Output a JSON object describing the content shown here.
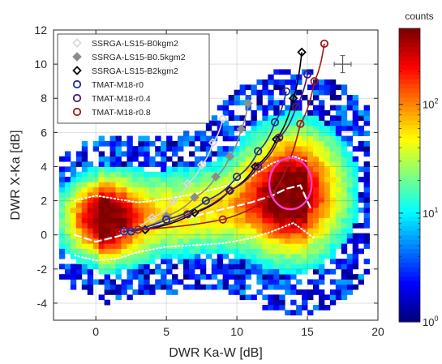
{
  "chart_data": {
    "type": "scatter",
    "subtype": "2d-histogram-with-model-curves",
    "xlabel": "DWR Ka-W [dB]",
    "ylabel": "DWR X-Ka [dB]",
    "xlim": [
      -3,
      20
    ],
    "ylim": [
      -5,
      12
    ],
    "xticks": [
      "0",
      "5",
      "10",
      "15",
      "20"
    ],
    "yticks": [
      "-4",
      "-2",
      "0",
      "2",
      "4",
      "6",
      "8",
      "10",
      "12"
    ],
    "grid": true,
    "legend_position": "top-left",
    "colorbar": {
      "label": "counts",
      "scale": "log",
      "range": [
        1,
        500
      ],
      "ticks": [
        {
          "base": "10",
          "exp": "0",
          "value": 1
        },
        {
          "base": "10",
          "exp": "1",
          "value": 10
        },
        {
          "base": "10",
          "exp": "2",
          "value": 100
        }
      ],
      "colormap": "jet"
    },
    "density_model": {
      "peaks": [
        {
          "x": 0.5,
          "y": 1.0,
          "sx": 1.5,
          "sy": 1.25,
          "weight": 1.0
        },
        {
          "x": 14.0,
          "y": 2.5,
          "sx": 2.0,
          "sy": 2.0,
          "weight": 0.95
        }
      ],
      "ridge": {
        "x_from": 0,
        "x_to": 15,
        "y_center_from": 0.7,
        "y_center_to": 2.2,
        "sy": 1.4,
        "weight": 0.35
      }
    },
    "series": [
      {
        "name": "SSRGA-LS15-B0kgm2",
        "kind": "model",
        "color": "#d9d9d9",
        "marker": "diamond-open",
        "x": [
          2.0,
          4.0,
          5.5,
          6.5,
          7.5,
          8.3,
          9.0
        ],
        "y": [
          0.2,
          1.0,
          2.0,
          3.0,
          4.1,
          5.4,
          6.8
        ]
      },
      {
        "name": "SSRGA-LS15-B0.5kgm2",
        "kind": "model",
        "color": "#8c8c8c",
        "marker": "diamond-filled",
        "x": [
          2.5,
          5.0,
          7.0,
          8.5,
          9.5,
          10.3,
          10.8
        ],
        "y": [
          0.2,
          1.1,
          2.2,
          3.4,
          4.6,
          6.2,
          7.7
        ]
      },
      {
        "name": "SSRGA-LS15-B2kgm2",
        "kind": "model",
        "color": "#000000",
        "marker": "diamond-open",
        "x": [
          3.5,
          7.0,
          9.5,
          11.3,
          12.8,
          14.0,
          14.6
        ],
        "y": [
          0.3,
          1.3,
          2.6,
          4.0,
          5.6,
          8.0,
          10.7
        ]
      },
      {
        "name": "TMAT-M18-r0",
        "kind": "model",
        "color": "#1f2f8f",
        "marker": "circle-open",
        "x": [
          2.0,
          5.0,
          7.8,
          10.0,
          11.5,
          12.7,
          13.5
        ],
        "y": [
          0.2,
          0.9,
          2.0,
          3.4,
          4.9,
          6.6,
          8.4
        ]
      },
      {
        "name": "TMAT-M18-r0.4",
        "kind": "model",
        "color": "#4b1a6e",
        "marker": "circle-open",
        "x": [
          2.5,
          6.5,
          9.5,
          11.5,
          13.0,
          14.2,
          15.0
        ],
        "y": [
          0.2,
          1.2,
          2.6,
          4.0,
          5.7,
          7.5,
          9.4
        ]
      },
      {
        "name": "TMAT-M18-r0.8",
        "kind": "model",
        "color": "#9b1c1c",
        "marker": "circle-open",
        "x": [
          3.0,
          9.0,
          12.5,
          14.5,
          15.5,
          16.2
        ],
        "y": [
          0.3,
          0.9,
          2.4,
          6.5,
          9.0,
          11.2
        ]
      },
      {
        "name": "",
        "kind": "median",
        "color": "#ffffff",
        "style": "dashed",
        "x": [
          -1.5,
          0,
          1.5,
          3,
          5,
          7,
          9,
          11,
          12.5,
          13.5,
          14.5,
          15.2
        ],
        "y": [
          0.0,
          -0.4,
          -0.1,
          0.3,
          0.7,
          1.1,
          1.5,
          1.9,
          2.3,
          2.7,
          2.9,
          1.6
        ]
      },
      {
        "name": "",
        "kind": "upper-quantile",
        "color": "#ffffff",
        "style": "dotted",
        "x": [
          -1.5,
          0,
          1.5,
          3,
          5,
          7,
          9,
          11,
          12.5,
          14,
          15
        ],
        "y": [
          2.0,
          2.3,
          2.1,
          1.9,
          2.1,
          2.4,
          2.8,
          3.4,
          4.2,
          4.6,
          4.3
        ]
      },
      {
        "name": "",
        "kind": "lower-quantile",
        "color": "#ffffff",
        "style": "dotted",
        "x": [
          -1.5,
          0,
          1.5,
          3,
          5,
          7,
          9,
          11,
          12.5,
          14,
          15.5
        ],
        "y": [
          -1.2,
          -1.5,
          -1.4,
          -1.0,
          -0.7,
          -0.6,
          -0.5,
          -0.2,
          0.2,
          0.7,
          -0.2
        ]
      }
    ],
    "annotations": [
      {
        "kind": "circle",
        "color": "#ff3bd4",
        "cx": 13.8,
        "cy": 3.0,
        "r": 1.5
      },
      {
        "kind": "error-cross",
        "color": "#555555",
        "x": 17.5,
        "y": 10.0,
        "dx": 0.6,
        "dy": 0.5
      }
    ]
  }
}
